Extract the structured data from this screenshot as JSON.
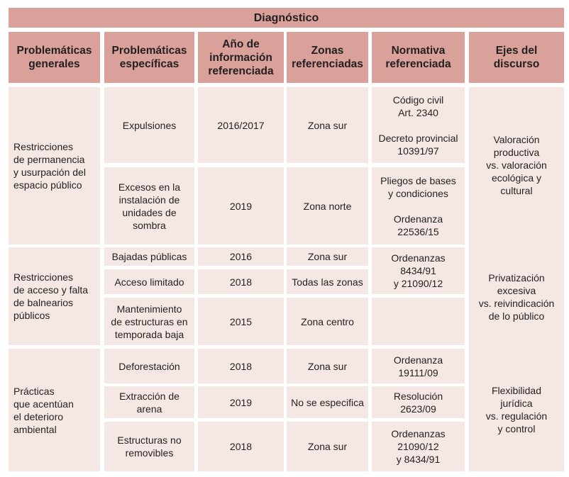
{
  "title": "Diagnóstico",
  "headers": [
    "Problemáticas\ngenerales",
    "Problemáticas\nespecíficas",
    "Año de\ninformación\nreferenciada",
    "Zonas\nreferenciadas",
    "Normativa\nreferenciada",
    "Ejes del\ndiscurso"
  ],
  "groups": [
    "Restricciones\nde permanencia\ny usurpación del\nespacio público",
    "Restricciones\nde acceso y falta\nde balnearios\npúblicos",
    "Prácticas\nque acentúan\nel deterioro\nambiental"
  ],
  "rows": [
    {
      "especifica": "Expulsiones",
      "anio": "2016/2017",
      "zona": "Zona sur"
    },
    {
      "especifica": "Excesos en la\ninstalación de\nunidades de\nsombra",
      "anio": "2019",
      "zona": "Zona norte"
    },
    {
      "especifica": "Bajadas públicas",
      "anio": "2016",
      "zona": "Zona sur"
    },
    {
      "especifica": "Acceso limitado",
      "anio": "2018",
      "zona": "Todas las zonas"
    },
    {
      "especifica": "Mantenimiento\nde estructuras en\ntemporada baja",
      "anio": "2015",
      "zona": "Zona centro"
    },
    {
      "especifica": "Deforestación",
      "anio": "2018",
      "zona": "Zona sur"
    },
    {
      "especifica": "Extracción de\narena",
      "anio": "2019",
      "zona": "No se especifica"
    },
    {
      "especifica": "Estructuras no\nremovibles",
      "anio": "2018",
      "zona": "Zona sur"
    }
  ],
  "normativas": [
    "Código civil\nArt. 2340\n\nDecreto provincial\n10391/97",
    "Pliegos de bases\ny condiciones\n\nOrdenanza\n22536/15",
    "Ordenanzas\n8434/91\ny 21090/12",
    "",
    "Ordenanza\n19111/09",
    "Resolución\n2623/09",
    "Ordenanzas\n21090/12\ny  8434/91"
  ],
  "ejes": [
    "Valoración\nproductiva\nvs. valoración\necológica y\ncultural",
    "Privatización\nexcesiva\nvs. reivindicación\nde lo público",
    "Flexibilidad\njurídica\nvs. regulación\ny control"
  ],
  "colors": {
    "header": "#d9a199",
    "cell": "#f5e8e4"
  }
}
